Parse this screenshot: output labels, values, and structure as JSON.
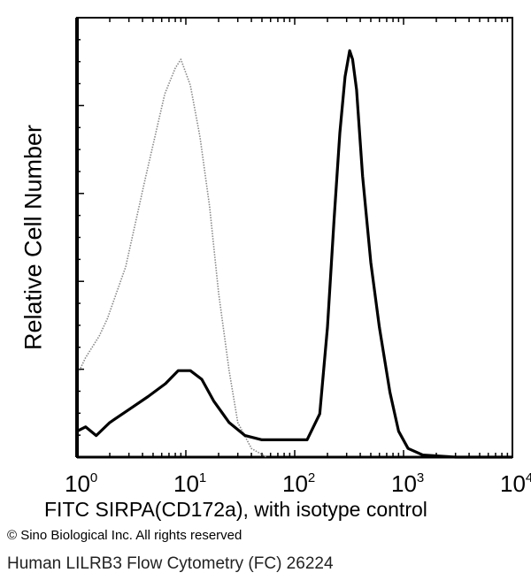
{
  "chart_data": {
    "type": "line",
    "xlabel": "FITC SIRPA(CD172a), with isotype control",
    "ylabel": "Relative Cell Number",
    "x_scale": "log",
    "xlim": [
      1,
      10000
    ],
    "ylim": [
      0,
      100
    ],
    "x_ticks": [
      {
        "base": "10",
        "exp": "0"
      },
      {
        "base": "10",
        "exp": "1"
      },
      {
        "base": "10",
        "exp": "2"
      },
      {
        "base": "10",
        "exp": "3"
      },
      {
        "base": "10",
        "exp": "4"
      }
    ],
    "grid": false,
    "series": [
      {
        "style": "dotted",
        "color": "#888888",
        "points": [
          [
            1.05,
            20
          ],
          [
            1.2,
            23
          ],
          [
            1.6,
            28
          ],
          [
            1.9,
            32
          ],
          [
            2.8,
            44
          ],
          [
            4.2,
            64
          ],
          [
            6.4,
            84
          ],
          [
            8,
            90
          ],
          [
            9,
            92
          ],
          [
            11,
            86
          ],
          [
            13.5,
            74
          ],
          [
            16.5,
            58
          ],
          [
            20,
            38
          ],
          [
            25,
            20
          ],
          [
            30,
            8
          ],
          [
            40,
            2
          ],
          [
            55,
            0
          ]
        ]
      },
      {
        "style": "solid",
        "color": "#000000",
        "points": [
          [
            1.0,
            6
          ],
          [
            1.2,
            7
          ],
          [
            1.5,
            5
          ],
          [
            2,
            8
          ],
          [
            3,
            11
          ],
          [
            4.5,
            14
          ],
          [
            6.5,
            17
          ],
          [
            8.5,
            20
          ],
          [
            11,
            20
          ],
          [
            14,
            18
          ],
          [
            18,
            13
          ],
          [
            25,
            8
          ],
          [
            35,
            5
          ],
          [
            50,
            4
          ],
          [
            80,
            4
          ],
          [
            130,
            4
          ],
          [
            170,
            10
          ],
          [
            200,
            30
          ],
          [
            230,
            55
          ],
          [
            260,
            75
          ],
          [
            290,
            88
          ],
          [
            320,
            94
          ],
          [
            340,
            92
          ],
          [
            370,
            85
          ],
          [
            420,
            65
          ],
          [
            500,
            45
          ],
          [
            600,
            30
          ],
          [
            750,
            15
          ],
          [
            900,
            6
          ],
          [
            1100,
            2
          ],
          [
            1500,
            0.5
          ],
          [
            3000,
            0
          ],
          [
            10000,
            0
          ]
        ]
      }
    ]
  },
  "copyright": "© Sino Biological Inc. All rights reserved",
  "caption": "Human LILRB3 Flow Cytometry (FC) 26224"
}
